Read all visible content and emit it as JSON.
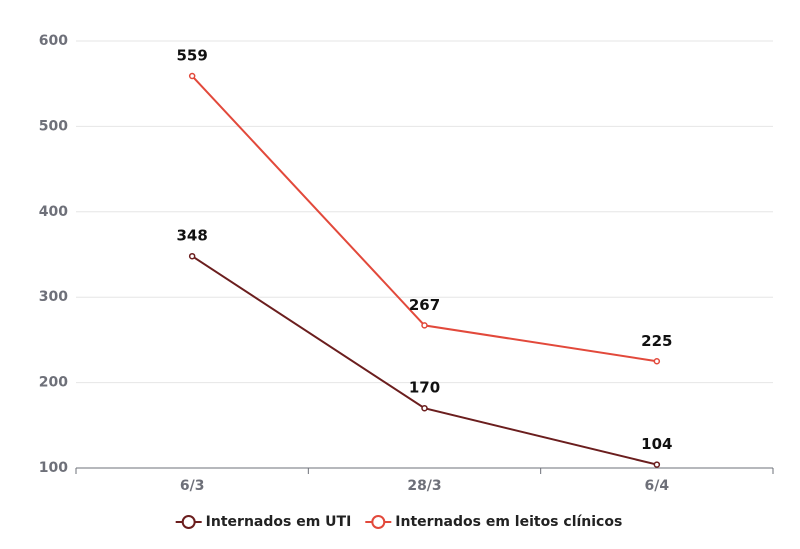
{
  "chart_data": {
    "type": "line",
    "categories": [
      "6/3",
      "28/3",
      "6/4"
    ],
    "series": [
      {
        "name": "Internados em UTI",
        "color": "#6b1e1e",
        "values": [
          348,
          170,
          104
        ]
      },
      {
        "name": "Internados em leitos clínicos",
        "color": "#e2493b",
        "values": [
          559,
          267,
          225
        ]
      }
    ],
    "ylim": [
      100,
      600
    ],
    "yticks": [
      100,
      200,
      300,
      400,
      500,
      600
    ],
    "grid": true,
    "legend": "bottom"
  }
}
